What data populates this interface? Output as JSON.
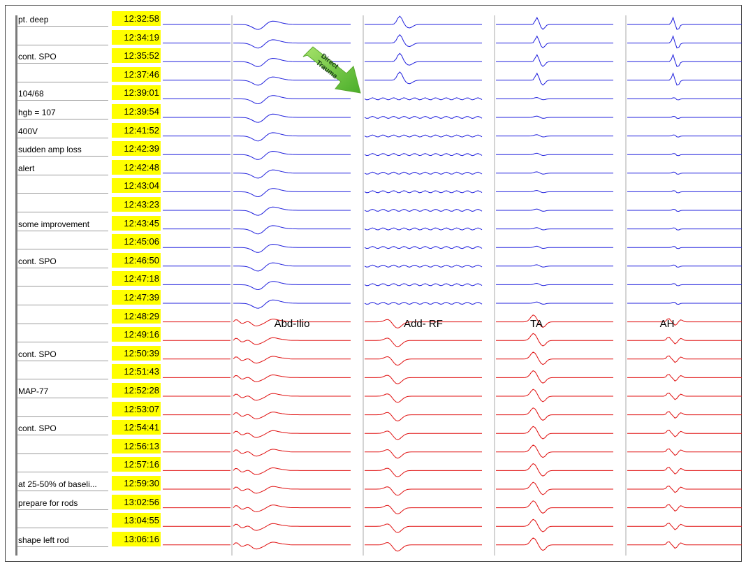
{
  "rows": [
    {
      "time": "12:32:58",
      "note": "pt. deep",
      "color": "blue"
    },
    {
      "time": "12:34:19",
      "note": "",
      "color": "blue"
    },
    {
      "time": "12:35:52",
      "note": "cont. SPO",
      "color": "blue"
    },
    {
      "time": "12:37:46",
      "note": "",
      "color": "blue"
    },
    {
      "time": "12:39:01",
      "note": "104/68",
      "color": "blue"
    },
    {
      "time": "12:39:54",
      "note": "hgb = 107",
      "color": "blue"
    },
    {
      "time": "12:41:52",
      "note": "400V",
      "color": "blue"
    },
    {
      "time": "12:42:39",
      "note": "sudden amp loss",
      "color": "blue"
    },
    {
      "time": "12:42:48",
      "note": "alert",
      "color": "blue"
    },
    {
      "time": "12:43:04",
      "note": "",
      "color": "blue"
    },
    {
      "time": "12:43:23",
      "note": "",
      "color": "blue"
    },
    {
      "time": "12:43:45",
      "note": "some improvement",
      "color": "blue"
    },
    {
      "time": "12:45:06",
      "note": "",
      "color": "blue"
    },
    {
      "time": "12:46:50",
      "note": " cont. SPO",
      "color": "blue"
    },
    {
      "time": "12:47:18",
      "note": "",
      "color": "blue"
    },
    {
      "time": "12:47:39",
      "note": "",
      "color": "blue"
    },
    {
      "time": "12:48:29",
      "note": "",
      "color": "red"
    },
    {
      "time": "12:49:16",
      "note": "",
      "color": "red"
    },
    {
      "time": "12:50:39",
      "note": "cont. SPO",
      "color": "red"
    },
    {
      "time": "12:51:43",
      "note": "",
      "color": "red"
    },
    {
      "time": "12:52:28",
      "note": "MAP-77",
      "color": "red"
    },
    {
      "time": "12:53:07",
      "note": "",
      "color": "red"
    },
    {
      "time": "12:54:41",
      "note": "cont. SPO",
      "color": "red"
    },
    {
      "time": "12:56:13",
      "note": "",
      "color": "red"
    },
    {
      "time": "12:57:16",
      "note": "",
      "color": "red"
    },
    {
      "time": "12:59:30",
      "note": "at 25-50% of baseli...",
      "color": "red"
    },
    {
      "time": "13:02:56",
      "note": "prepare for rods",
      "color": "red"
    },
    {
      "time": "13:04:55",
      "note": "",
      "color": "red"
    },
    {
      "time": "13:06:16",
      "note": "shape left rod",
      "color": "red"
    }
  ],
  "chart_data": {
    "type": "line",
    "channels": [
      "Abd-Ilio",
      "Add- RF",
      "TA",
      "AH"
    ],
    "annotation": "Direct Trauma",
    "colors": {
      "baseline": "#2020dd",
      "after": "#e01010",
      "highlight": "#ffff00",
      "arrow": "#66cc33"
    }
  }
}
